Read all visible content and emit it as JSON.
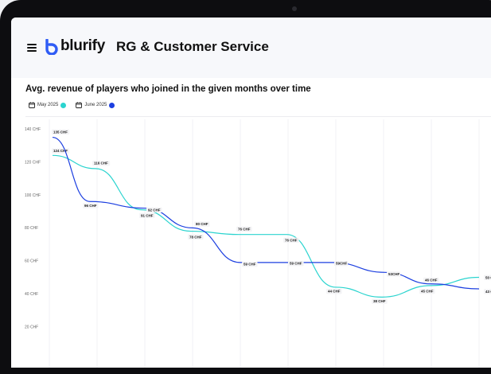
{
  "header": {
    "brand": "blurify",
    "page_title": "RG & Customer Service"
  },
  "icons": {
    "menu": "hamburger-menu-icon",
    "logo": "blurify-logo-icon",
    "legend": "calendar-icon"
  },
  "colors": {
    "may": "#2bd4cf",
    "june": "#1c3fe0",
    "logo": "#2f5cf5"
  },
  "chart_data": {
    "type": "line",
    "title": "Avg. revenue of players who joined in the given months over time",
    "ylim": [
      0,
      140
    ],
    "yticks": [
      {
        "value": 20,
        "label": "20 CHF"
      },
      {
        "value": 40,
        "label": "40 CHF"
      },
      {
        "value": 60,
        "label": "60 CHF"
      },
      {
        "value": 80,
        "label": "80 CHF"
      },
      {
        "value": 100,
        "label": "100 CHF"
      },
      {
        "value": 120,
        "label": "120 CHF"
      },
      {
        "value": 140,
        "label": "140 CHF"
      }
    ],
    "grid": true,
    "legend_position": "top-left",
    "series": [
      {
        "name": "May 2025",
        "color": "#2bd4cf",
        "points": [
          {
            "value": 124,
            "label": "124 CHF"
          },
          {
            "value": 116,
            "label": "116 CHF"
          },
          {
            "value": 91,
            "label": "91 CHF"
          },
          {
            "value": 78,
            "label": "78 CHF"
          },
          {
            "value": 76,
            "label": "76 CHF"
          },
          {
            "value": 76,
            "label": "76 CHF"
          },
          {
            "value": 44,
            "label": "44 CHF"
          },
          {
            "value": 38,
            "label": "38 CHF"
          },
          {
            "value": 45,
            "label": "45 CHF"
          },
          {
            "value": 50,
            "label": "50 CHF"
          }
        ]
      },
      {
        "name": "June 2025",
        "color": "#1c3fe0",
        "points": [
          {
            "value": 135,
            "label": "135 CHF"
          },
          {
            "value": 96,
            "label": "96 CHF"
          },
          {
            "value": 92,
            "label": "92 CHF"
          },
          {
            "value": 80,
            "label": "80 CHF"
          },
          {
            "value": 59,
            "label": "59 CHF"
          },
          {
            "value": 59,
            "label": "59 CHF"
          },
          {
            "value": 59,
            "label": "59CHF"
          },
          {
            "value": 53,
            "label": "53CHF"
          },
          {
            "value": 46,
            "label": "46 CHF"
          },
          {
            "value": 43,
            "label": "43 CHF"
          }
        ]
      }
    ]
  }
}
